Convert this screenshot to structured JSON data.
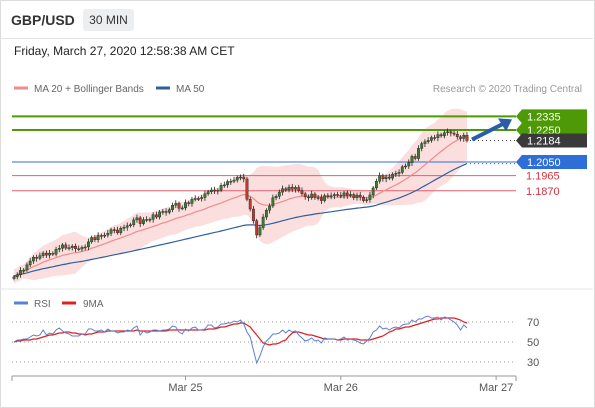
{
  "header": {
    "symbol": "GBP/USD",
    "timeframe": "30 MIN",
    "datetime": "Friday, March 27, 2020 12:58:38 AM CET"
  },
  "legend": {
    "items": [
      {
        "label": "MA 20 + Bollinger Bands",
        "color": "#f28b8b"
      },
      {
        "label": "MA 50",
        "color": "#2f5f9e"
      }
    ],
    "copyright": "Research © 2020 Trading Central"
  },
  "rsi_legend": {
    "items": [
      {
        "label": "RSI",
        "color": "#5b7fd6"
      },
      {
        "label": "9MA",
        "color": "#e02020"
      }
    ]
  },
  "chart_data": [
    {
      "type": "line",
      "title": "GBP/USD 30 MIN",
      "y_range": [
        1.125,
        1.245
      ],
      "x_ticks": [
        {
          "label": "Mar 25",
          "index": 53
        },
        {
          "label": "Mar 26",
          "index": 101
        },
        {
          "label": "Mar 27",
          "index": 149
        }
      ],
      "current_price": 1.2184,
      "levels": [
        {
          "value": 1.2335,
          "label": "1.2335",
          "kind": "resistance",
          "color": "#4e9a06"
        },
        {
          "value": 1.225,
          "label": "1.2250",
          "kind": "resistance",
          "color": "#4e9a06"
        },
        {
          "value": 1.205,
          "label": "1.2050",
          "kind": "pivot",
          "color": "#2d6ed8"
        },
        {
          "value": 1.1965,
          "label": "1.1965",
          "kind": "support",
          "color": "#e06070"
        },
        {
          "value": 1.187,
          "label": "1.1870",
          "kind": "support",
          "color": "#e06070"
        }
      ],
      "forecast": {
        "from": 1.2184,
        "to": 1.2335
      },
      "series": [
        {
          "name": "GBP/USD",
          "values": [
            1.1332,
            1.1345,
            1.1373,
            1.1375,
            1.1407,
            1.1431,
            1.1455,
            1.1448,
            1.1464,
            1.1481,
            1.1468,
            1.148,
            1.1474,
            1.1504,
            1.1511,
            1.1532,
            1.1512,
            1.1514,
            1.1524,
            1.1508,
            1.1506,
            1.1516,
            1.1519,
            1.1551,
            1.1578,
            1.1564,
            1.1591,
            1.1587,
            1.1593,
            1.1605,
            1.1627,
            1.1625,
            1.1608,
            1.1636,
            1.1642,
            1.1652,
            1.1658,
            1.1688,
            1.1701,
            1.1665,
            1.1689,
            1.1691,
            1.1692,
            1.172,
            1.1706,
            1.1738,
            1.1741,
            1.1735,
            1.1752,
            1.178,
            1.1791,
            1.1761,
            1.1763,
            1.1796,
            1.1791,
            1.1816,
            1.1822,
            1.1821,
            1.1828,
            1.1851,
            1.1864,
            1.1875,
            1.1868,
            1.1874,
            1.1904,
            1.1907,
            1.1928,
            1.193,
            1.1937,
            1.1954,
            1.1956,
            1.1944,
            1.1817,
            1.1756,
            1.1683,
            1.1594,
            1.164,
            1.1706,
            1.1749,
            1.1775,
            1.1826,
            1.1836,
            1.1862,
            1.1883,
            1.1875,
            1.1893,
            1.188,
            1.1891,
            1.1871,
            1.1851,
            1.1832,
            1.1826,
            1.185,
            1.1828,
            1.1828,
            1.1809,
            1.184,
            1.1835,
            1.1839,
            1.1847,
            1.1842,
            1.1838,
            1.1857,
            1.184,
            1.1847,
            1.1827,
            1.1843,
            1.183,
            1.1809,
            1.1814,
            1.1844,
            1.1888,
            1.193,
            1.1965,
            1.1945,
            1.1956,
            1.1949,
            1.1974,
            1.1979,
            1.1985,
            1.202,
            1.2025,
            1.2046,
            1.2085,
            1.2072,
            1.2135,
            1.2165,
            1.2176,
            1.2185,
            1.2203,
            1.2201,
            1.2221,
            1.2213,
            1.2233,
            1.2239,
            1.2231,
            1.2224,
            1.2207,
            1.2197,
            1.2217,
            1.2184
          ]
        },
        {
          "name": "MA 20",
          "values": [
            1.1335,
            1.1346,
            1.1359,
            1.1365,
            1.1375,
            1.1385,
            1.1396,
            1.1404,
            1.1414,
            1.1424,
            1.1431,
            1.1439,
            1.1445,
            1.1452,
            1.1459,
            1.1467,
            1.1471,
            1.1475,
            1.148,
            1.1483,
            1.1487,
            1.1491,
            1.1495,
            1.1502,
            1.1511,
            1.1517,
            1.1525,
            1.1532,
            1.1539,
            1.1546,
            1.1555,
            1.1562,
            1.1568,
            1.1576,
            1.1583,
            1.1591,
            1.1598,
            1.1607,
            1.1616,
            1.1621,
            1.1627,
            1.1634,
            1.164,
            1.1647,
            1.1653,
            1.1661,
            1.1668,
            1.1674,
            1.1681,
            1.1689,
            1.1697,
            1.1703,
            1.1708,
            1.1715,
            1.1722,
            1.1729,
            1.1737,
            1.1743,
            1.1749,
            1.1757,
            1.1765,
            1.1773,
            1.178,
            1.1786,
            1.1794,
            1.1802,
            1.181,
            1.1818,
            1.1825,
            1.1832,
            1.184,
            1.1846,
            1.1843,
            1.1835,
            1.1822,
            1.1803,
            1.179,
            1.1783,
            1.178,
            1.178,
            1.1785,
            1.179,
            1.1796,
            1.1804,
            1.181,
            1.1818,
            1.1824,
            1.183,
            1.1834,
            1.1836,
            1.1837,
            1.1836,
            1.1837,
            1.1836,
            1.1835,
            1.1832,
            1.1832,
            1.1831,
            1.183,
            1.183,
            1.183,
            1.1829,
            1.1832,
            1.1832,
            1.1833,
            1.1832,
            1.1833,
            1.1833,
            1.1829,
            1.1826,
            1.1828,
            1.1834,
            1.1843,
            1.1855,
            1.1866,
            1.1876,
            1.1886,
            1.1897,
            1.1907,
            1.1917,
            1.193,
            1.1942,
            1.1955,
            1.197,
            1.1982,
            1.1998,
            1.2016,
            1.2032,
            1.2049,
            1.2067,
            1.2083,
            1.2101,
            1.2116,
            1.2132,
            1.2148,
            1.2162,
            1.2175,
            1.2186,
            1.2196,
            1.2206,
            1.2214
          ]
        },
        {
          "name": "MA 50",
          "values": [
            1.1336,
            1.1342,
            1.1348,
            1.1352,
            1.1357,
            1.1363,
            1.1368,
            1.1373,
            1.1378,
            1.1383,
            1.1387,
            1.1391,
            1.1395,
            1.14,
            1.1404,
            1.1409,
            1.1412,
            1.1416,
            1.142,
            1.1423,
            1.1426,
            1.1429,
            1.1433,
            1.1437,
            1.1441,
            1.1445,
            1.1449,
            1.1453,
            1.1457,
            1.1461,
            1.1466,
            1.147,
            1.1474,
            1.1478,
            1.1482,
            1.1486,
            1.149,
            1.1495,
            1.15,
            1.1504,
            1.1508,
            1.1513,
            1.1517,
            1.1522,
            1.1526,
            1.1531,
            1.1535,
            1.154,
            1.1544,
            1.1549,
            1.1554,
            1.1558,
            1.1563,
            1.1568,
            1.1572,
            1.1577,
            1.1582,
            1.1586,
            1.1591,
            1.1596,
            1.16,
            1.1605,
            1.161,
            1.1614,
            1.1619,
            1.1624,
            1.1629,
            1.1634,
            1.1639,
            1.1644,
            1.1649,
            1.1654,
            1.1656,
            1.1657,
            1.1657,
            1.1654,
            1.1653,
            1.1655,
            1.1658,
            1.1662,
            1.1667,
            1.1672,
            1.1677,
            1.1683,
            1.1688,
            1.1693,
            1.1698,
            1.1703,
            1.1707,
            1.1711,
            1.1715,
            1.1718,
            1.1721,
            1.1725,
            1.1728,
            1.173,
            1.1733,
            1.1736,
            1.1739,
            1.1742,
            1.1745,
            1.1748,
            1.1751,
            1.1754,
            1.1756,
            1.1759,
            1.1762,
            1.1764,
            1.1766,
            1.1768,
            1.1771,
            1.1775,
            1.178,
            1.1787,
            1.1793,
            1.1799,
            1.1805,
            1.1812,
            1.1818,
            1.1825,
            1.1833,
            1.1841,
            1.185,
            1.1859,
            1.1869,
            1.1879,
            1.1891,
            1.1902,
            1.1913,
            1.1925,
            1.1936,
            1.1948,
            1.1959,
            1.1971,
            1.1982,
            1.1993,
            1.2003,
            1.2013,
            1.2022,
            1.2032,
            1.204
          ]
        }
      ]
    },
    {
      "type": "line",
      "title": "RSI",
      "y_ticks": [
        70,
        50,
        30
      ],
      "y_range": [
        20,
        80
      ],
      "series": [
        {
          "name": "RSI",
          "values": [
            50,
            52,
            52,
            53,
            53,
            55,
            57,
            56,
            57,
            62,
            57,
            59,
            58,
            62,
            64,
            61,
            59,
            58,
            56,
            56,
            56,
            58,
            58,
            63,
            63,
            61,
            61,
            62,
            60,
            63,
            61,
            61,
            59,
            60,
            60,
            62,
            61,
            64,
            66,
            57,
            61,
            59,
            60,
            62,
            62,
            61,
            62,
            62,
            63,
            66,
            65,
            60,
            58,
            63,
            61,
            64,
            65,
            62,
            62,
            63,
            67,
            67,
            64,
            65,
            68,
            68,
            69,
            69,
            71,
            70,
            72,
            68,
            60,
            55,
            42,
            29,
            36,
            45,
            51,
            54,
            58,
            58,
            59,
            62,
            59,
            62,
            60,
            61,
            57,
            54,
            51,
            52,
            54,
            51,
            52,
            49,
            54,
            53,
            53,
            53,
            52,
            53,
            55,
            52,
            53,
            52,
            51,
            49,
            48,
            51,
            54,
            60,
            62,
            66,
            63,
            64,
            62,
            64,
            65,
            64,
            67,
            68,
            68,
            72,
            70,
            73,
            73,
            75,
            76,
            74,
            74,
            75,
            72,
            75,
            74,
            72,
            70,
            67,
            62,
            67,
            64
          ]
        },
        {
          "name": "9MA",
          "values": [
            50,
            51,
            51,
            52,
            52,
            52,
            53,
            53,
            54,
            55,
            56,
            57,
            57,
            58,
            59,
            59,
            60,
            60,
            59,
            59,
            58,
            58,
            57,
            58,
            58,
            59,
            60,
            60,
            60,
            61,
            61,
            61,
            61,
            61,
            61,
            61,
            61,
            61,
            62,
            61,
            61,
            61,
            61,
            61,
            61,
            61,
            61,
            61,
            62,
            62,
            62,
            62,
            62,
            62,
            62,
            62,
            62,
            62,
            62,
            62,
            63,
            63,
            63,
            64,
            65,
            65,
            66,
            67,
            68,
            68,
            69,
            69,
            67,
            65,
            61,
            57,
            53,
            49,
            48,
            47,
            48,
            48,
            49,
            51,
            52,
            56,
            59,
            60,
            60,
            59,
            58,
            57,
            57,
            56,
            55,
            54,
            53,
            53,
            53,
            53,
            52,
            52,
            53,
            53,
            53,
            53,
            53,
            52,
            52,
            52,
            52,
            53,
            54,
            55,
            56,
            58,
            60,
            61,
            63,
            63,
            64,
            65,
            65,
            66,
            67,
            68,
            69,
            70,
            71,
            72,
            73,
            73,
            74,
            74,
            74,
            74,
            74,
            73,
            72,
            70,
            69
          ]
        }
      ]
    }
  ]
}
